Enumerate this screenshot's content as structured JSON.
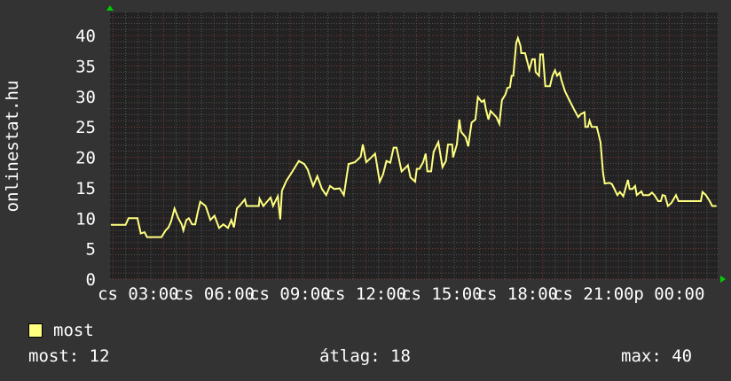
{
  "chart_data": {
    "type": "line",
    "ylabel": "onlinestat.hu",
    "ylim": [
      0,
      43.8
    ],
    "yticks": [
      0,
      5,
      10,
      15,
      20,
      25,
      30,
      35,
      40
    ],
    "xlim": [
      "cs 01:53",
      "p 01:55"
    ],
    "xticks": [
      "cs 03:00",
      "cs 06:00",
      "cs 09:00",
      "cs 12:00",
      "cs 15:00",
      "cs 18:00",
      "cs 21:00",
      "p 00:00"
    ],
    "grid": true,
    "colors": {
      "background": "#333333",
      "plot": "#222222",
      "line": "#ffff80",
      "grid_minor": "#555555",
      "grid_major": "#7a3a3a",
      "arrow": "#00cc00"
    },
    "series": [
      {
        "name": "most",
        "points": [
          [
            "cs 01:55",
            8.9
          ],
          [
            "cs 02:30",
            8.9
          ],
          [
            "cs 02:37",
            10
          ],
          [
            "cs 02:58",
            10
          ],
          [
            "cs 03:06",
            7.5
          ],
          [
            "cs 03:15",
            7.7
          ],
          [
            "cs 03:21",
            6.9
          ],
          [
            "cs 03:55",
            6.9
          ],
          [
            "cs 04:05",
            8
          ],
          [
            "cs 04:12",
            8.5
          ],
          [
            "cs 04:18",
            9.5
          ],
          [
            "cs 04:26",
            11.6
          ],
          [
            "cs 04:35",
            10
          ],
          [
            "cs 04:43",
            9
          ],
          [
            "cs 04:47",
            8
          ],
          [
            "cs 04:54",
            9.7
          ],
          [
            "cs 05:00",
            10
          ],
          [
            "cs 05:08",
            9
          ],
          [
            "cs 05:15",
            9
          ],
          [
            "cs 05:21",
            10.9
          ],
          [
            "cs 05:27",
            12.7
          ],
          [
            "cs 05:40",
            12
          ],
          [
            "cs 05:51",
            9.7
          ],
          [
            "cs 06:01",
            10.4
          ],
          [
            "cs 06:12",
            8.4
          ],
          [
            "cs 06:22",
            9
          ],
          [
            "cs 06:33",
            8.4
          ],
          [
            "cs 06:41",
            9.7
          ],
          [
            "cs 06:47",
            8.5
          ],
          [
            "cs 06:54",
            11.6
          ],
          [
            "cs 07:00",
            12
          ],
          [
            "cs 07:13",
            13.1
          ],
          [
            "cs 07:17",
            12
          ],
          [
            "cs 07:46",
            12
          ],
          [
            "cs 07:48",
            13.2
          ],
          [
            "cs 07:57",
            12
          ],
          [
            "cs 08:14",
            13.4
          ],
          [
            "cs 08:20",
            12
          ],
          [
            "cs 08:31",
            13.6
          ],
          [
            "cs 08:37",
            9.8
          ],
          [
            "cs 08:41",
            14.5
          ],
          [
            "cs 08:52",
            16.2
          ],
          [
            "cs 09:06",
            17.7
          ],
          [
            "cs 09:21",
            19.4
          ],
          [
            "cs 09:34",
            18.9
          ],
          [
            "cs 09:42",
            18
          ],
          [
            "cs 09:55",
            15.3
          ],
          [
            "cs 10:05",
            16.9
          ],
          [
            "cs 10:16",
            14.8
          ],
          [
            "cs 10:26",
            13.8
          ],
          [
            "cs 10:35",
            15.3
          ],
          [
            "cs 10:45",
            14.8
          ],
          [
            "cs 10:58",
            14.9
          ],
          [
            "cs 11:08",
            13.8
          ],
          [
            "cs 11:19",
            18.9
          ],
          [
            "cs 11:34",
            19.2
          ],
          [
            "cs 11:48",
            20.1
          ],
          [
            "cs 11:53",
            22.1
          ],
          [
            "cs 12:01",
            19.2
          ],
          [
            "cs 12:12",
            19.9
          ],
          [
            "cs 12:22",
            20.6
          ],
          [
            "cs 12:33",
            16
          ],
          [
            "cs 12:41",
            17.2
          ],
          [
            "cs 12:49",
            19.4
          ],
          [
            "cs 12:58",
            19.1
          ],
          [
            "cs 13:06",
            21.6
          ],
          [
            "cs 13:13",
            21.6
          ],
          [
            "cs 13:25",
            17.7
          ],
          [
            "cs 13:36",
            18.4
          ],
          [
            "cs 13:40",
            18.7
          ],
          [
            "cs 13:46",
            16.7
          ],
          [
            "cs 13:57",
            16
          ],
          [
            "cs 14:01",
            18.1
          ],
          [
            "cs 14:07",
            18.1
          ],
          [
            "cs 14:16",
            19.2
          ],
          [
            "cs 14:22",
            20.6
          ],
          [
            "cs 14:26",
            17.7
          ],
          [
            "cs 14:35",
            17.7
          ],
          [
            "cs 14:41",
            20.9
          ],
          [
            "cs 14:52",
            22.5
          ],
          [
            "cs 15:02",
            18.4
          ],
          [
            "cs 15:10",
            19.4
          ],
          [
            "cs 15:15",
            22.1
          ],
          [
            "cs 15:25",
            22.1
          ],
          [
            "cs 15:27",
            20
          ],
          [
            "cs 15:36",
            22.1
          ],
          [
            "cs 15:42",
            26.2
          ],
          [
            "cs 15:46",
            24.2
          ],
          [
            "cs 15:57",
            23.3
          ],
          [
            "cs 16:03",
            21.8
          ],
          [
            "cs 16:11",
            25.7
          ],
          [
            "cs 16:20",
            26.2
          ],
          [
            "cs 16:26",
            29.9
          ],
          [
            "cs 16:35",
            29.1
          ],
          [
            "cs 16:41",
            29.4
          ],
          [
            "cs 16:45",
            27.9
          ],
          [
            "cs 16:51",
            26.2
          ],
          [
            "cs 16:56",
            27.6
          ],
          [
            "cs 17:10",
            26.6
          ],
          [
            "cs 17:17",
            25.5
          ],
          [
            "cs 17:23",
            29.4
          ],
          [
            "cs 17:31",
            30.3
          ],
          [
            "cs 17:36",
            31.4
          ],
          [
            "cs 17:42",
            31.5
          ],
          [
            "cs 17:46",
            33.4
          ],
          [
            "cs 17:50",
            33.4
          ],
          [
            "cs 17:57",
            38.8
          ],
          [
            "cs 18:01",
            39.6
          ],
          [
            "cs 18:07",
            38.3
          ],
          [
            "cs 18:09",
            37.1
          ],
          [
            "cs 18:18",
            37.1
          ],
          [
            "cs 18:28",
            34.4
          ],
          [
            "cs 18:35",
            36.1
          ],
          [
            "cs 18:41",
            36.1
          ],
          [
            "cs 18:43",
            34
          ],
          [
            "cs 18:51",
            33.4
          ],
          [
            "cs 18:54",
            36.9
          ],
          [
            "cs 19:00",
            36.9
          ],
          [
            "cs 19:06",
            31.7
          ],
          [
            "cs 19:17",
            31.7
          ],
          [
            "cs 19:23",
            33.4
          ],
          [
            "cs 19:29",
            34.3
          ],
          [
            "cs 19:34",
            33.4
          ],
          [
            "cs 19:40",
            33.9
          ],
          [
            "cs 19:44",
            32.7
          ],
          [
            "cs 19:53",
            30.8
          ],
          [
            "cs 20:03",
            29.4
          ],
          [
            "cs 20:14",
            27.9
          ],
          [
            "cs 20:24",
            26.6
          ],
          [
            "cs 20:30",
            27.1
          ],
          [
            "cs 20:39",
            27.4
          ],
          [
            "cs 20:41",
            25
          ],
          [
            "cs 20:47",
            25
          ],
          [
            "cs 20:51",
            26
          ],
          [
            "cs 20:56",
            25
          ],
          [
            "cs 21:08",
            25
          ],
          [
            "cs 21:17",
            22.5
          ],
          [
            "cs 21:23",
            17.4
          ],
          [
            "cs 21:27",
            15.7
          ],
          [
            "cs 21:38",
            15.8
          ],
          [
            "cs 21:44",
            15.6
          ],
          [
            "cs 21:50",
            14.8
          ],
          [
            "cs 21:57",
            13.8
          ],
          [
            "cs 22:03",
            14.3
          ],
          [
            "cs 22:11",
            13.6
          ],
          [
            "cs 22:22",
            16.3
          ],
          [
            "cs 22:26",
            14.8
          ],
          [
            "cs 22:33",
            14.8
          ],
          [
            "cs 22:39",
            15.3
          ],
          [
            "cs 22:43",
            13.8
          ],
          [
            "cs 22:54",
            14.4
          ],
          [
            "cs 22:58",
            13.8
          ],
          [
            "cs 23:12",
            13.8
          ],
          [
            "cs 23:19",
            14.2
          ],
          [
            "cs 23:25",
            13.8
          ],
          [
            "cs 23:34",
            12.8
          ],
          [
            "cs 23:40",
            12.8
          ],
          [
            "cs 23:44",
            13.8
          ],
          [
            "cs 23:50",
            13.7
          ],
          [
            "cs 23:57",
            12
          ],
          [
            "p 00:05",
            12.5
          ],
          [
            "p 00:16",
            13.8
          ],
          [
            "p 00:22",
            12.8
          ],
          [
            "p 01:15",
            12.8
          ],
          [
            "p 01:19",
            14.3
          ],
          [
            "p 01:27",
            13.8
          ],
          [
            "p 01:36",
            12.8
          ],
          [
            "p 01:42",
            12
          ],
          [
            "p 01:52",
            12
          ]
        ]
      }
    ]
  },
  "legend": {
    "label": "most",
    "color": "#ffff80"
  },
  "stats": {
    "current": "most: 12",
    "average": "átlag: 18",
    "max": "max: 40"
  }
}
